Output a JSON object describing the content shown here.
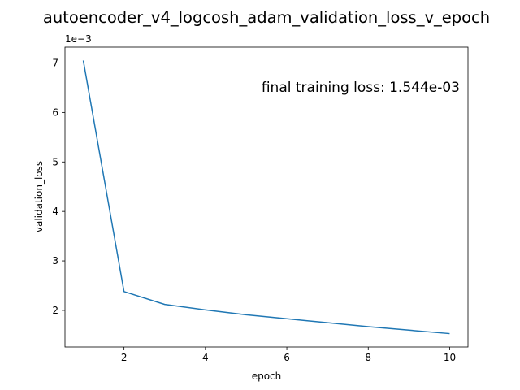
{
  "chart_data": {
    "type": "line",
    "title": "autoencoder_v4_logcosh_adam_validation_loss_v_epoch",
    "xlabel": "epoch",
    "ylabel": "validation_loss",
    "y_offset_label": "1e−3",
    "annotation": "final training loss: 1.544e-03",
    "x": [
      1,
      2,
      3,
      4,
      5,
      6,
      7,
      8,
      9,
      10
    ],
    "series": [
      {
        "values": [
          0.00705,
          0.00238,
          0.00212,
          0.00201,
          0.00191,
          0.00183,
          0.00175,
          0.00167,
          0.0016,
          0.00153
        ],
        "color": "#1f77b4"
      }
    ],
    "xlim": [
      0.55,
      10.45
    ],
    "ylim": [
      0.00126,
      0.00732
    ],
    "xticks": [
      2,
      4,
      6,
      8,
      10
    ],
    "xtick_labels": [
      "2",
      "4",
      "6",
      "8",
      "10"
    ],
    "yticks": [
      0.002,
      0.003,
      0.004,
      0.005,
      0.006,
      0.007
    ],
    "ytick_labels": [
      "2",
      "3",
      "4",
      "5",
      "6",
      "7"
    ],
    "grid": false,
    "legend": false
  }
}
